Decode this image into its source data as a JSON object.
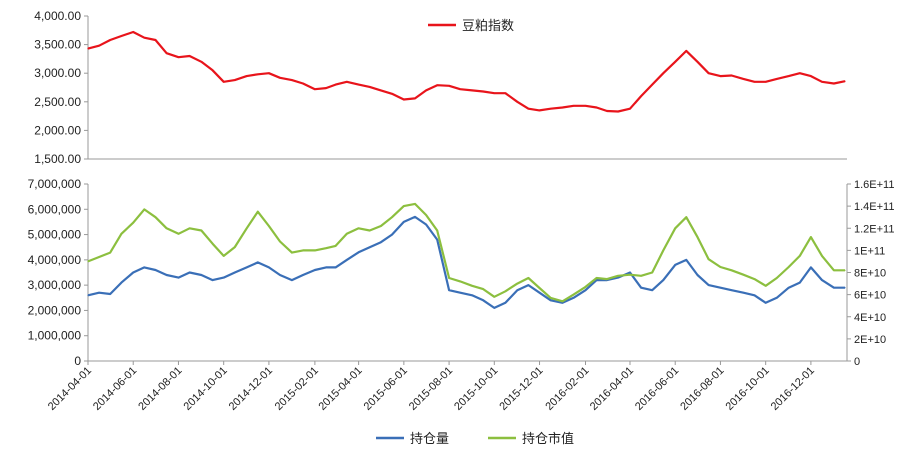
{
  "chart_data": [
    {
      "type": "line",
      "title": "",
      "xlabel": "",
      "ylabel": "",
      "y_ticks": [
        "4,000.00",
        "3,500.00",
        "3,000.00",
        "2,500.00",
        "2,000.00",
        "1,500.00"
      ],
      "ylim": [
        1500,
        4000
      ],
      "grid": false,
      "legend": {
        "placement": "top-center",
        "entries": [
          {
            "name": "豆粕指数",
            "color": "#e8141b"
          }
        ]
      },
      "series": [
        {
          "name": "豆粕指数",
          "color": "#e8141b",
          "points": [
            [
              "2014-04-01",
              3430
            ],
            [
              "2014-04-16",
              3480
            ],
            [
              "2014-05-01",
              3580
            ],
            [
              "2014-05-16",
              3650
            ],
            [
              "2014-06-01",
              3720
            ],
            [
              "2014-06-16",
              3620
            ],
            [
              "2014-07-01",
              3580
            ],
            [
              "2014-07-16",
              3350
            ],
            [
              "2014-08-01",
              3280
            ],
            [
              "2014-08-16",
              3300
            ],
            [
              "2014-09-01",
              3200
            ],
            [
              "2014-09-16",
              3050
            ],
            [
              "2014-10-01",
              2850
            ],
            [
              "2014-10-16",
              2880
            ],
            [
              "2014-11-01",
              2950
            ],
            [
              "2014-11-16",
              2980
            ],
            [
              "2014-12-01",
              3000
            ],
            [
              "2014-12-16",
              2920
            ],
            [
              "2015-01-01",
              2880
            ],
            [
              "2015-01-16",
              2820
            ],
            [
              "2015-02-01",
              2720
            ],
            [
              "2015-02-16",
              2740
            ],
            [
              "2015-03-01",
              2800
            ],
            [
              "2015-03-16",
              2850
            ],
            [
              "2015-04-01",
              2800
            ],
            [
              "2015-04-16",
              2760
            ],
            [
              "2015-05-01",
              2700
            ],
            [
              "2015-05-16",
              2640
            ],
            [
              "2015-06-01",
              2540
            ],
            [
              "2015-06-16",
              2560
            ],
            [
              "2015-07-01",
              2700
            ],
            [
              "2015-07-16",
              2790
            ],
            [
              "2015-08-01",
              2780
            ],
            [
              "2015-08-16",
              2720
            ],
            [
              "2015-09-01",
              2700
            ],
            [
              "2015-09-16",
              2680
            ],
            [
              "2015-10-01",
              2650
            ],
            [
              "2015-10-16",
              2650
            ],
            [
              "2015-11-01",
              2500
            ],
            [
              "2015-11-16",
              2380
            ],
            [
              "2015-12-01",
              2350
            ],
            [
              "2015-12-16",
              2380
            ],
            [
              "2016-01-01",
              2400
            ],
            [
              "2016-01-16",
              2430
            ],
            [
              "2016-02-01",
              2430
            ],
            [
              "2016-02-16",
              2400
            ],
            [
              "2016-03-01",
              2340
            ],
            [
              "2016-03-16",
              2330
            ],
            [
              "2016-04-01",
              2380
            ],
            [
              "2016-04-16",
              2600
            ],
            [
              "2016-05-01",
              2800
            ],
            [
              "2016-05-16",
              3000
            ],
            [
              "2016-06-01",
              3200
            ],
            [
              "2016-06-16",
              3390
            ],
            [
              "2016-07-01",
              3200
            ],
            [
              "2016-07-16",
              3000
            ],
            [
              "2016-08-01",
              2950
            ],
            [
              "2016-08-16",
              2960
            ],
            [
              "2016-09-01",
              2900
            ],
            [
              "2016-09-16",
              2850
            ],
            [
              "2016-10-01",
              2850
            ],
            [
              "2016-10-16",
              2900
            ],
            [
              "2016-11-01",
              2950
            ],
            [
              "2016-11-16",
              3000
            ],
            [
              "2016-12-01",
              2950
            ],
            [
              "2016-12-16",
              2850
            ],
            [
              "2017-01-01",
              2820
            ],
            [
              "2017-01-16",
              2860
            ]
          ]
        }
      ]
    },
    {
      "type": "line",
      "title": "",
      "xlabel": "",
      "ylabel": "",
      "y_left_ticks": [
        "7,000,000",
        "6,000,000",
        "5,000,000",
        "4,000,000",
        "3,000,000",
        "2,000,000",
        "1,000,000",
        "0"
      ],
      "y_right_ticks": [
        "1.6E+11",
        "1.4E+11",
        "1.2E+11",
        "1E+11",
        "8E+10",
        "6E+10",
        "4E+10",
        "2E+10",
        "0"
      ],
      "ylim_left": [
        0,
        7000000
      ],
      "ylim_right": [
        0,
        160000000000
      ],
      "x_ticks": [
        "2014-04-01",
        "2014-06-01",
        "2014-08-01",
        "2014-10-01",
        "2014-12-01",
        "2015-02-01",
        "2015-04-01",
        "2015-06-01",
        "2015-08-01",
        "2015-10-01",
        "2015-12-01",
        "2016-02-01",
        "2016-04-01",
        "2016-06-01",
        "2016-08-01",
        "2016-10-01",
        "2016-12-01"
      ],
      "grid": false,
      "legend": {
        "placement": "bottom-center",
        "entries": [
          {
            "name": "持仓量",
            "color": "#3a6fb7"
          },
          {
            "name": "持仓市值",
            "color": "#8cbf3f"
          }
        ]
      },
      "series": [
        {
          "name": "持仓量",
          "axis": "left",
          "color": "#3a6fb7",
          "points": [
            [
              "2014-04-01",
              2600000
            ],
            [
              "2014-04-16",
              2700000
            ],
            [
              "2014-05-01",
              2650000
            ],
            [
              "2014-05-16",
              3100000
            ],
            [
              "2014-06-01",
              3500000
            ],
            [
              "2014-06-16",
              3700000
            ],
            [
              "2014-07-01",
              3600000
            ],
            [
              "2014-07-16",
              3400000
            ],
            [
              "2014-08-01",
              3300000
            ],
            [
              "2014-08-16",
              3500000
            ],
            [
              "2014-09-01",
              3400000
            ],
            [
              "2014-09-16",
              3200000
            ],
            [
              "2014-10-01",
              3300000
            ],
            [
              "2014-10-16",
              3500000
            ],
            [
              "2014-11-01",
              3700000
            ],
            [
              "2014-11-16",
              3900000
            ],
            [
              "2014-12-01",
              3700000
            ],
            [
              "2014-12-16",
              3400000
            ],
            [
              "2015-01-01",
              3200000
            ],
            [
              "2015-01-16",
              3400000
            ],
            [
              "2015-02-01",
              3600000
            ],
            [
              "2015-02-16",
              3700000
            ],
            [
              "2015-03-01",
              3700000
            ],
            [
              "2015-03-16",
              4000000
            ],
            [
              "2015-04-01",
              4300000
            ],
            [
              "2015-04-16",
              4500000
            ],
            [
              "2015-05-01",
              4700000
            ],
            [
              "2015-05-16",
              5000000
            ],
            [
              "2015-06-01",
              5500000
            ],
            [
              "2015-06-16",
              5700000
            ],
            [
              "2015-07-01",
              5400000
            ],
            [
              "2015-07-16",
              4800000
            ],
            [
              "2015-08-01",
              2800000
            ],
            [
              "2015-08-16",
              2700000
            ],
            [
              "2015-09-01",
              2600000
            ],
            [
              "2015-09-16",
              2400000
            ],
            [
              "2015-10-01",
              2100000
            ],
            [
              "2015-10-16",
              2300000
            ],
            [
              "2015-11-01",
              2800000
            ],
            [
              "2015-11-16",
              3000000
            ],
            [
              "2015-12-01",
              2700000
            ],
            [
              "2015-12-16",
              2400000
            ],
            [
              "2016-01-01",
              2300000
            ],
            [
              "2016-01-16",
              2500000
            ],
            [
              "2016-02-01",
              2800000
            ],
            [
              "2016-02-16",
              3200000
            ],
            [
              "2016-03-01",
              3200000
            ],
            [
              "2016-03-16",
              3300000
            ],
            [
              "2016-04-01",
              3500000
            ],
            [
              "2016-04-16",
              2900000
            ],
            [
              "2016-05-01",
              2800000
            ],
            [
              "2016-05-16",
              3200000
            ],
            [
              "2016-06-01",
              3800000
            ],
            [
              "2016-06-16",
              4000000
            ],
            [
              "2016-07-01",
              3400000
            ],
            [
              "2016-07-16",
              3000000
            ],
            [
              "2016-08-01",
              2900000
            ],
            [
              "2016-08-16",
              2800000
            ],
            [
              "2016-09-01",
              2700000
            ],
            [
              "2016-09-16",
              2600000
            ],
            [
              "2016-10-01",
              2300000
            ],
            [
              "2016-10-16",
              2500000
            ],
            [
              "2016-11-01",
              2900000
            ],
            [
              "2016-11-16",
              3100000
            ],
            [
              "2016-12-01",
              3700000
            ],
            [
              "2016-12-16",
              3200000
            ],
            [
              "2017-01-01",
              2900000
            ],
            [
              "2017-01-16",
              2900000
            ]
          ]
        },
        {
          "name": "持仓市值",
          "axis": "right",
          "color": "#8cbf3f",
          "points": [
            [
              "2014-04-01",
              90000000000
            ],
            [
              "2014-04-16",
              94000000000
            ],
            [
              "2014-05-01",
              98000000000
            ],
            [
              "2014-05-16",
              115000000000
            ],
            [
              "2014-06-01",
              125000000000
            ],
            [
              "2014-06-16",
              137000000000
            ],
            [
              "2014-07-01",
              130000000000
            ],
            [
              "2014-07-16",
              120000000000
            ],
            [
              "2014-08-01",
              115000000000
            ],
            [
              "2014-08-16",
              120000000000
            ],
            [
              "2014-09-01",
              118000000000
            ],
            [
              "2014-09-16",
              106000000000
            ],
            [
              "2014-10-01",
              95000000000
            ],
            [
              "2014-10-16",
              103000000000
            ],
            [
              "2014-11-01",
              120000000000
            ],
            [
              "2014-11-16",
              135000000000
            ],
            [
              "2014-12-01",
              122000000000
            ],
            [
              "2014-12-16",
              108000000000
            ],
            [
              "2015-01-01",
              98000000000
            ],
            [
              "2015-01-16",
              100000000000
            ],
            [
              "2015-02-01",
              100000000000
            ],
            [
              "2015-02-16",
              102000000000
            ],
            [
              "2015-03-01",
              104000000000
            ],
            [
              "2015-03-16",
              115000000000
            ],
            [
              "2015-04-01",
              120000000000
            ],
            [
              "2015-04-16",
              118000000000
            ],
            [
              "2015-05-01",
              122000000000
            ],
            [
              "2015-05-16",
              130000000000
            ],
            [
              "2015-06-01",
              140000000000
            ],
            [
              "2015-06-16",
              142000000000
            ],
            [
              "2015-07-01",
              132000000000
            ],
            [
              "2015-07-16",
              118000000000
            ],
            [
              "2015-08-01",
              75000000000
            ],
            [
              "2015-08-16",
              72000000000
            ],
            [
              "2015-09-01",
              68000000000
            ],
            [
              "2015-09-16",
              65000000000
            ],
            [
              "2015-10-01",
              58000000000
            ],
            [
              "2015-10-16",
              63000000000
            ],
            [
              "2015-11-01",
              70000000000
            ],
            [
              "2015-11-16",
              75000000000
            ],
            [
              "2015-12-01",
              66000000000
            ],
            [
              "2015-12-16",
              57000000000
            ],
            [
              "2016-01-01",
              54000000000
            ],
            [
              "2016-01-16",
              60000000000
            ],
            [
              "2016-02-01",
              67000000000
            ],
            [
              "2016-02-16",
              75000000000
            ],
            [
              "2016-03-01",
              74000000000
            ],
            [
              "2016-03-16",
              77000000000
            ],
            [
              "2016-04-01",
              78000000000
            ],
            [
              "2016-04-16",
              77000000000
            ],
            [
              "2016-05-01",
              80000000000
            ],
            [
              "2016-05-16",
              100000000000
            ],
            [
              "2016-06-01",
              120000000000
            ],
            [
              "2016-06-16",
              130000000000
            ],
            [
              "2016-07-01",
              112000000000
            ],
            [
              "2016-07-16",
              92000000000
            ],
            [
              "2016-08-01",
              85000000000
            ],
            [
              "2016-08-16",
              82000000000
            ],
            [
              "2016-09-01",
              78000000000
            ],
            [
              "2016-09-16",
              74000000000
            ],
            [
              "2016-10-01",
              68000000000
            ],
            [
              "2016-10-16",
              75000000000
            ],
            [
              "2016-11-01",
              85000000000
            ],
            [
              "2016-11-16",
              95000000000
            ],
            [
              "2016-12-01",
              112000000000
            ],
            [
              "2016-12-16",
              95000000000
            ],
            [
              "2017-01-01",
              82000000000
            ],
            [
              "2017-01-16",
              82000000000
            ]
          ]
        }
      ]
    }
  ]
}
